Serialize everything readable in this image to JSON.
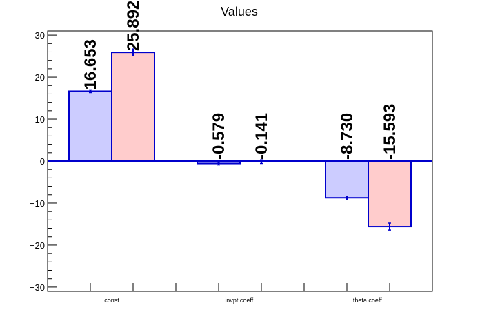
{
  "chart_data": {
    "type": "bar",
    "title": "Values",
    "xlabel": "",
    "ylabel": "",
    "categories": [
      "const",
      "invpt coeff.",
      "theta coeff."
    ],
    "ylim": [
      -31,
      31
    ],
    "yticks": [
      -30,
      -20,
      -10,
      0,
      10,
      20,
      30
    ],
    "ytick_labels": [
      "−30",
      "−20",
      "−10",
      "0",
      "10",
      "20",
      "30"
    ],
    "grid": false,
    "legend": "none",
    "series": [
      {
        "values": [
          16.653,
          -0.579,
          -8.73
        ],
        "labels": [
          "16.653",
          "-0.579",
          "-8.730"
        ],
        "errors": [
          0,
          0,
          0
        ],
        "fill": "#ccccff",
        "stroke": "#0000cc"
      },
      {
        "values": [
          25.892,
          -0.141,
          -15.593
        ],
        "labels": [
          "25.892",
          "-0.141",
          "-15.593"
        ],
        "errors": [
          0.5,
          0.1,
          0.5
        ],
        "fill": "#ffcccc",
        "stroke": "#0000cc"
      }
    ]
  }
}
